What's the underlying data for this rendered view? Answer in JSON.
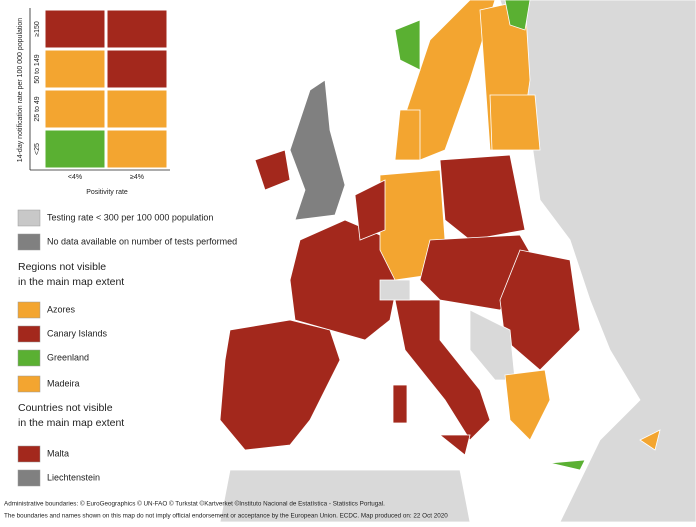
{
  "legend": {
    "y_title": "14-day notification rate per 100 000 population",
    "x_title": "Positivity rate",
    "rows": [
      "≥150",
      "50 to 149",
      "25 to 49",
      "<25"
    ],
    "columns": [
      "<4%",
      "≥4%"
    ],
    "cell_colors": [
      [
        "#a3281c",
        "#a3281c"
      ],
      [
        "#f3a530",
        "#a3281c"
      ],
      [
        "#f3a530",
        "#f3a530"
      ],
      [
        "#5ab032",
        "#f3a530"
      ]
    ]
  },
  "testing_items": [
    {
      "label": "Testing rate < 300 per 100 000 population",
      "color": "#c8c8c8"
    },
    {
      "label": "No data available on number of tests performed",
      "color": "#808080"
    }
  ],
  "regions": {
    "heading": [
      "Regions not visible",
      "in the main map extent"
    ],
    "items": [
      {
        "label": "Azores",
        "color": "#f3a530"
      },
      {
        "label": "Canary Islands",
        "color": "#a3281c"
      },
      {
        "label": "Greenland",
        "color": "#5ab032"
      },
      {
        "label": "Madeira",
        "color": "#f3a530"
      }
    ]
  },
  "countries": {
    "heading": [
      "Countries not visible",
      "in the main map extent"
    ],
    "items": [
      {
        "label": "Malta",
        "color": "#a3281c"
      },
      {
        "label": "Liechtenstein",
        "color": "#808080"
      }
    ]
  },
  "footer": [
    "Administrative boundaries: © EuroGeographics © UN-FAO © Turkstat ©Kartverket ©Instituto Nacional de Estatística - Statistics Portugal.",
    "The boundaries and names shown on this map do not imply official endorsement or acceptance by the European Union. ECDC. Map produced on: 22 Oct 2020"
  ]
}
